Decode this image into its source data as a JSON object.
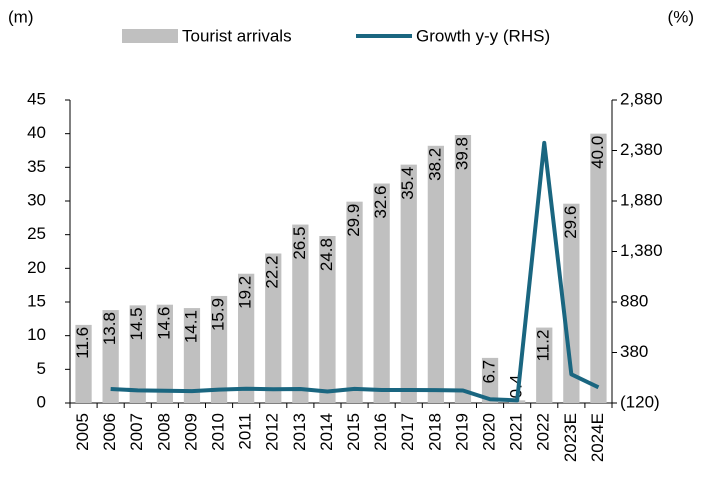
{
  "chart_data": {
    "type": "bar",
    "y_label": "(m)",
    "y2_label": "(%)",
    "categories": [
      "2005",
      "2006",
      "2007",
      "2008",
      "2009",
      "2010",
      "2011",
      "2012",
      "2013",
      "2014",
      "2015",
      "2016",
      "2017",
      "2018",
      "2019",
      "2020",
      "2021",
      "2022",
      "2023E",
      "2024E"
    ],
    "series": [
      {
        "name": "Tourist arrivals",
        "type": "bar",
        "color": "#c0c0c0",
        "values": [
          11.6,
          13.8,
          14.5,
          14.6,
          14.1,
          15.9,
          19.2,
          22.2,
          26.5,
          24.8,
          29.9,
          32.6,
          35.4,
          38.2,
          39.8,
          6.7,
          0.4,
          11.2,
          29.6,
          40.0
        ],
        "value_labels": [
          "11.6",
          "13.8",
          "14.5",
          "14.6",
          "14.1",
          "15.9",
          "19.2",
          "22.2",
          "26.5",
          "24.8",
          "29.9",
          "32.6",
          "35.4",
          "38.2",
          "39.8",
          "6.7",
          "0.4",
          "11.2",
          "29.6",
          "40.0"
        ]
      },
      {
        "name": "Growth y-y (RHS)",
        "type": "line",
        "axis": "y2",
        "color": "#1a6680",
        "values": [
          null,
          19,
          5,
          1,
          -3,
          13,
          21,
          16,
          19,
          -6,
          20,
          9,
          9,
          8,
          4,
          -83,
          -94,
          2456,
          164,
          35
        ]
      }
    ],
    "ylim": [
      0,
      45
    ],
    "yticks": [
      0,
      5,
      10,
      15,
      20,
      25,
      30,
      35,
      40,
      45
    ],
    "y2lim": [
      -120,
      2880
    ],
    "y2ticks": [
      {
        "value": -120,
        "label": "(120)"
      },
      380,
      880,
      {
        "value": 1380,
        "label": "1,380"
      },
      {
        "value": 1880,
        "label": "1,880"
      },
      {
        "value": 2380,
        "label": "2,380"
      },
      {
        "value": 2880,
        "label": "2,880"
      }
    ],
    "grid": false,
    "legend": "top"
  }
}
